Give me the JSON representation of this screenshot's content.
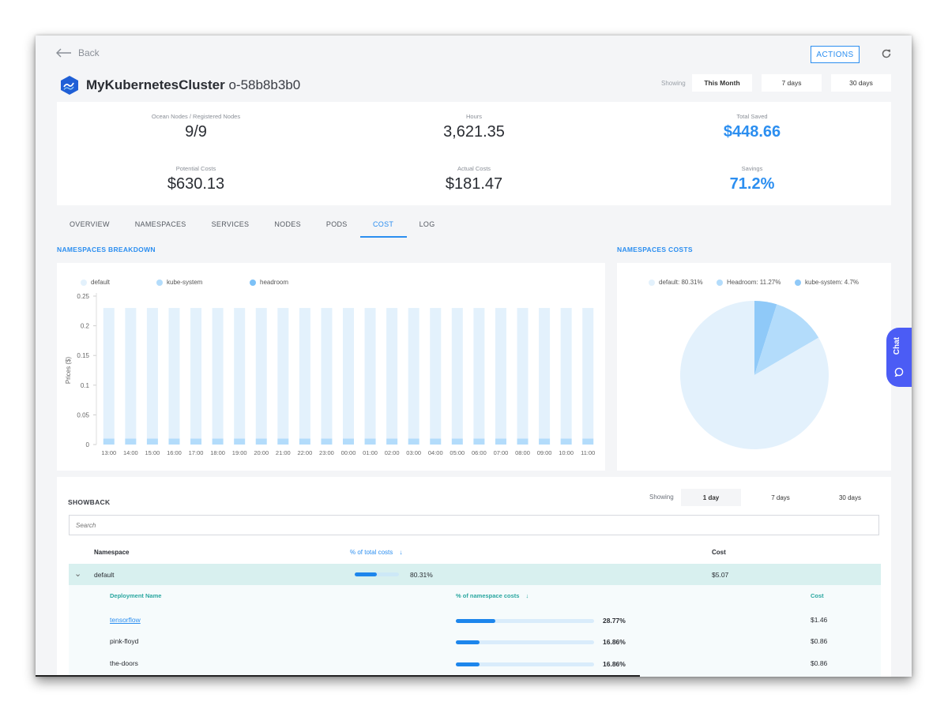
{
  "header": {
    "back_label": "Back",
    "actions_label": "ACTIONS",
    "cluster_name": "MyKubernetesCluster",
    "cluster_id": "o-58b8b3b0",
    "showing_label": "Showing",
    "ranges": [
      "This Month",
      "7 days",
      "30 days"
    ]
  },
  "stats": {
    "ocean_nodes_label": "Ocean Nodes / Registered Nodes",
    "ocean_nodes_value": "9/9",
    "hours_label": "Hours",
    "hours_value": "3,621.35",
    "total_saved_label": "Total Saved",
    "total_saved_value": "$448.66",
    "potential_label": "Potential Costs",
    "potential_value": "$630.13",
    "actual_label": "Actual Costs",
    "actual_value": "$181.47",
    "savings_label": "Savings",
    "savings_value": "71.2%"
  },
  "tabs": [
    "OVERVIEW",
    "NAMESPACES",
    "SERVICES",
    "NODES",
    "PODS",
    "COST",
    "LOG"
  ],
  "breakdown_title": "NAMESPACES BREAKDOWN",
  "costs_title": "NAMESPACES COSTS",
  "chat_label": "Chat",
  "chart_data": [
    {
      "type": "bar",
      "stacked": true,
      "ylabel": "Prices ($)",
      "ylim": [
        0,
        0.25
      ],
      "yticks": [
        "0",
        "0.05",
        "0.1",
        "0.15",
        "0.2",
        "0.25"
      ],
      "categories": [
        "13:00",
        "14:00",
        "15:00",
        "16:00",
        "17:00",
        "18:00",
        "19:00",
        "20:00",
        "21:00",
        "22:00",
        "23:00",
        "00:00",
        "01:00",
        "02:00",
        "03:00",
        "04:00",
        "05:00",
        "06:00",
        "07:00",
        "08:00",
        "09:00",
        "10:00",
        "11:00"
      ],
      "legend": [
        "default",
        "kube-system",
        "headroom"
      ],
      "legend_position": "top",
      "series": [
        {
          "name": "kube-system",
          "color": "#b3dcfb",
          "values": [
            0.01,
            0.01,
            0.01,
            0.01,
            0.01,
            0.01,
            0.01,
            0.01,
            0.01,
            0.01,
            0.01,
            0.01,
            0.01,
            0.01,
            0.01,
            0.01,
            0.01,
            0.01,
            0.01,
            0.01,
            0.01,
            0.01,
            0.01
          ]
        },
        {
          "name": "default",
          "color": "#e3f1fc",
          "values": [
            0.22,
            0.22,
            0.22,
            0.22,
            0.22,
            0.22,
            0.22,
            0.22,
            0.22,
            0.22,
            0.22,
            0.22,
            0.22,
            0.22,
            0.22,
            0.22,
            0.22,
            0.22,
            0.22,
            0.22,
            0.22,
            0.22,
            0.22
          ]
        }
      ],
      "legend_colors": [
        "#e3f1fc",
        "#b3dcfb",
        "#7cc1f7"
      ]
    },
    {
      "type": "pie",
      "legend": [
        "default: 80.31%",
        "Headroom: 11.27%",
        "kube-system: 4.7%"
      ],
      "legend_position": "top",
      "slices": [
        {
          "name": "kube-system",
          "value": 4.7,
          "color": "#8fc9f8"
        },
        {
          "name": "Headroom",
          "value": 11.27,
          "color": "#b3dcfb"
        },
        {
          "name": "default",
          "value": 80.31,
          "color": "#e3f1fc"
        }
      ]
    }
  ],
  "showback": {
    "title": "SHOWBACK",
    "showing_label": "Showing",
    "ranges": [
      "1 day",
      "7 days",
      "30 days"
    ],
    "search_placeholder": "Search",
    "col_namespace": "Namespace",
    "col_pct_total": "% of total costs",
    "col_cost": "Cost",
    "default_row": {
      "name": "default",
      "pct": "80.31%",
      "pct_value": 80.31,
      "cost": "$5.07"
    },
    "sub_col_deployment": "Deployment Name",
    "sub_col_pct": "% of namespace costs",
    "sub_col_cost": "Cost",
    "deployments": [
      {
        "name": "tensorflow",
        "pct": "28.77%",
        "pct_value": 28.77,
        "cost": "$1.46"
      },
      {
        "name": "pink-floyd",
        "pct": "16.86%",
        "pct_value": 16.86,
        "cost": "$0.86"
      },
      {
        "name": "the-doors",
        "pct": "16.86%",
        "pct_value": 16.86,
        "cost": "$0.86"
      }
    ]
  }
}
